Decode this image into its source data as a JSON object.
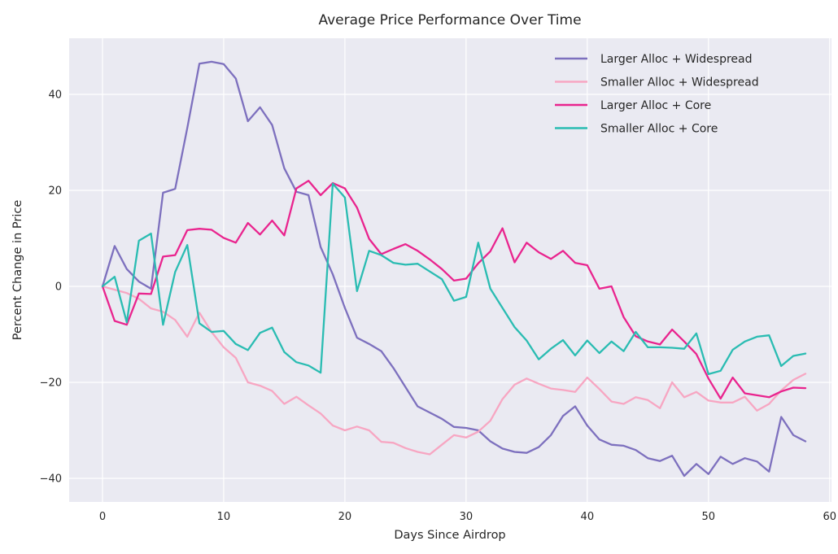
{
  "title": "Average Price Performance Over Time",
  "colors": {
    "figure_bg": "#ffffff",
    "plot_bg": "#eaeaf2",
    "grid": "#ffffff",
    "text": "#262626"
  },
  "chart_data": {
    "type": "line",
    "title": "Average Price Performance Over Time",
    "xlabel": "Days Since Airdrop",
    "ylabel": "Percent Change in Price",
    "xlim": [
      -2.75,
      60.15
    ],
    "ylim": [
      -44.92,
      51.69
    ],
    "xticks": [
      0,
      10,
      20,
      30,
      40,
      50,
      60
    ],
    "yticks": [
      -40,
      -20,
      0,
      20,
      40
    ],
    "grid": true,
    "legend_position": "upper right",
    "legend_frame": false,
    "x": [
      0,
      1,
      2,
      3,
      4,
      5,
      6,
      7,
      8,
      9,
      10,
      11,
      12,
      13,
      14,
      15,
      16,
      17,
      18,
      19,
      20,
      21,
      22,
      23,
      24,
      25,
      26,
      27,
      28,
      29,
      30,
      31,
      32,
      33,
      34,
      35,
      36,
      37,
      38,
      39,
      40,
      41,
      42,
      43,
      44,
      45,
      46,
      47,
      48,
      49,
      50,
      51,
      52,
      53,
      54,
      55,
      56,
      57,
      58
    ],
    "series": [
      {
        "name": "Larger Alloc + Widespread",
        "color": "#7d70be",
        "values": [
          0,
          8.4,
          3.6,
          1.0,
          -0.5,
          19.5,
          20.3,
          33.0,
          46.4,
          46.8,
          46.3,
          43.3,
          34.4,
          37.3,
          33.6,
          24.6,
          19.7,
          19.0,
          8.2,
          2.5,
          -4.5,
          -10.7,
          -12.0,
          -13.5,
          -17.0,
          -21.0,
          -25.0,
          -26.3,
          -27.6,
          -29.3,
          -29.5,
          -30.0,
          -32.3,
          -33.8,
          -34.5,
          -34.7,
          -33.5,
          -31.0,
          -27.0,
          -25.0,
          -29.0,
          -31.9,
          -33.0,
          -33.2,
          -34.1,
          -35.8,
          -36.4,
          -35.3,
          -39.5,
          -37.0,
          -39.1,
          -35.5,
          -37.0,
          -35.8,
          -36.5,
          -38.6,
          -27.2,
          -31.0,
          -32.3
        ]
      },
      {
        "name": "Smaller Alloc + Widespread",
        "color": "#f7a6c2",
        "values": [
          0,
          -0.7,
          -1.4,
          -2.6,
          -4.6,
          -5.3,
          -7.0,
          -10.5,
          -5.5,
          -9.5,
          -12.7,
          -14.9,
          -20.0,
          -20.7,
          -21.8,
          -24.5,
          -23.0,
          -24.8,
          -26.5,
          -29.0,
          -30.0,
          -29.2,
          -30.0,
          -32.4,
          -32.6,
          -33.7,
          -34.5,
          -35.0,
          -33.0,
          -31.0,
          -31.5,
          -30.3,
          -28.0,
          -23.5,
          -20.5,
          -19.2,
          -20.3,
          -21.3,
          -21.6,
          -22.0,
          -19.0,
          -21.4,
          -24.0,
          -24.5,
          -23.1,
          -23.7,
          -25.4,
          -20.0,
          -23.1,
          -22.0,
          -23.8,
          -24.2,
          -24.2,
          -23.0,
          -25.9,
          -24.5,
          -21.7,
          -19.5,
          -18.2
        ]
      },
      {
        "name": "Larger Alloc + Core",
        "color": "#e9248e",
        "values": [
          0,
          -7.2,
          -8.0,
          -1.5,
          -1.6,
          6.2,
          6.5,
          11.7,
          12.0,
          11.8,
          10.1,
          9.1,
          13.2,
          10.8,
          13.7,
          10.6,
          20.4,
          22.0,
          19.0,
          21.5,
          20.4,
          16.4,
          9.9,
          6.7,
          7.8,
          8.8,
          7.4,
          5.6,
          3.6,
          1.2,
          1.6,
          4.8,
          7.3,
          12.1,
          5.0,
          9.1,
          7.1,
          5.7,
          7.4,
          4.9,
          4.4,
          -0.5,
          0.0,
          -6.4,
          -10.4,
          -11.5,
          -12.1,
          -9.0,
          -11.5,
          -14.1,
          -19.2,
          -23.4,
          -19.0,
          -22.3,
          -22.7,
          -23.1,
          -21.9,
          -21.1,
          -21.2
        ]
      },
      {
        "name": "Smaller Alloc + Core",
        "color": "#2abcb2",
        "values": [
          0,
          2.0,
          -7.5,
          9.5,
          11.0,
          -8.0,
          3.0,
          8.6,
          -7.7,
          -9.5,
          -9.3,
          -12.0,
          -13.3,
          -9.7,
          -8.6,
          -13.7,
          -15.8,
          -16.5,
          -18.0,
          21.4,
          18.5,
          -1.0,
          7.4,
          6.5,
          4.9,
          4.5,
          4.7,
          3.1,
          1.5,
          -3.0,
          -2.2,
          9.1,
          -0.5,
          -4.5,
          -8.5,
          -11.3,
          -15.2,
          -13.0,
          -11.2,
          -14.4,
          -11.3,
          -13.9,
          -11.5,
          -13.5,
          -9.5,
          -12.7,
          -12.7,
          -12.8,
          -13.0,
          -9.8,
          -18.3,
          -17.6,
          -13.2,
          -11.5,
          -10.5,
          -10.2,
          -16.6,
          -14.5,
          -14.0
        ]
      }
    ]
  }
}
